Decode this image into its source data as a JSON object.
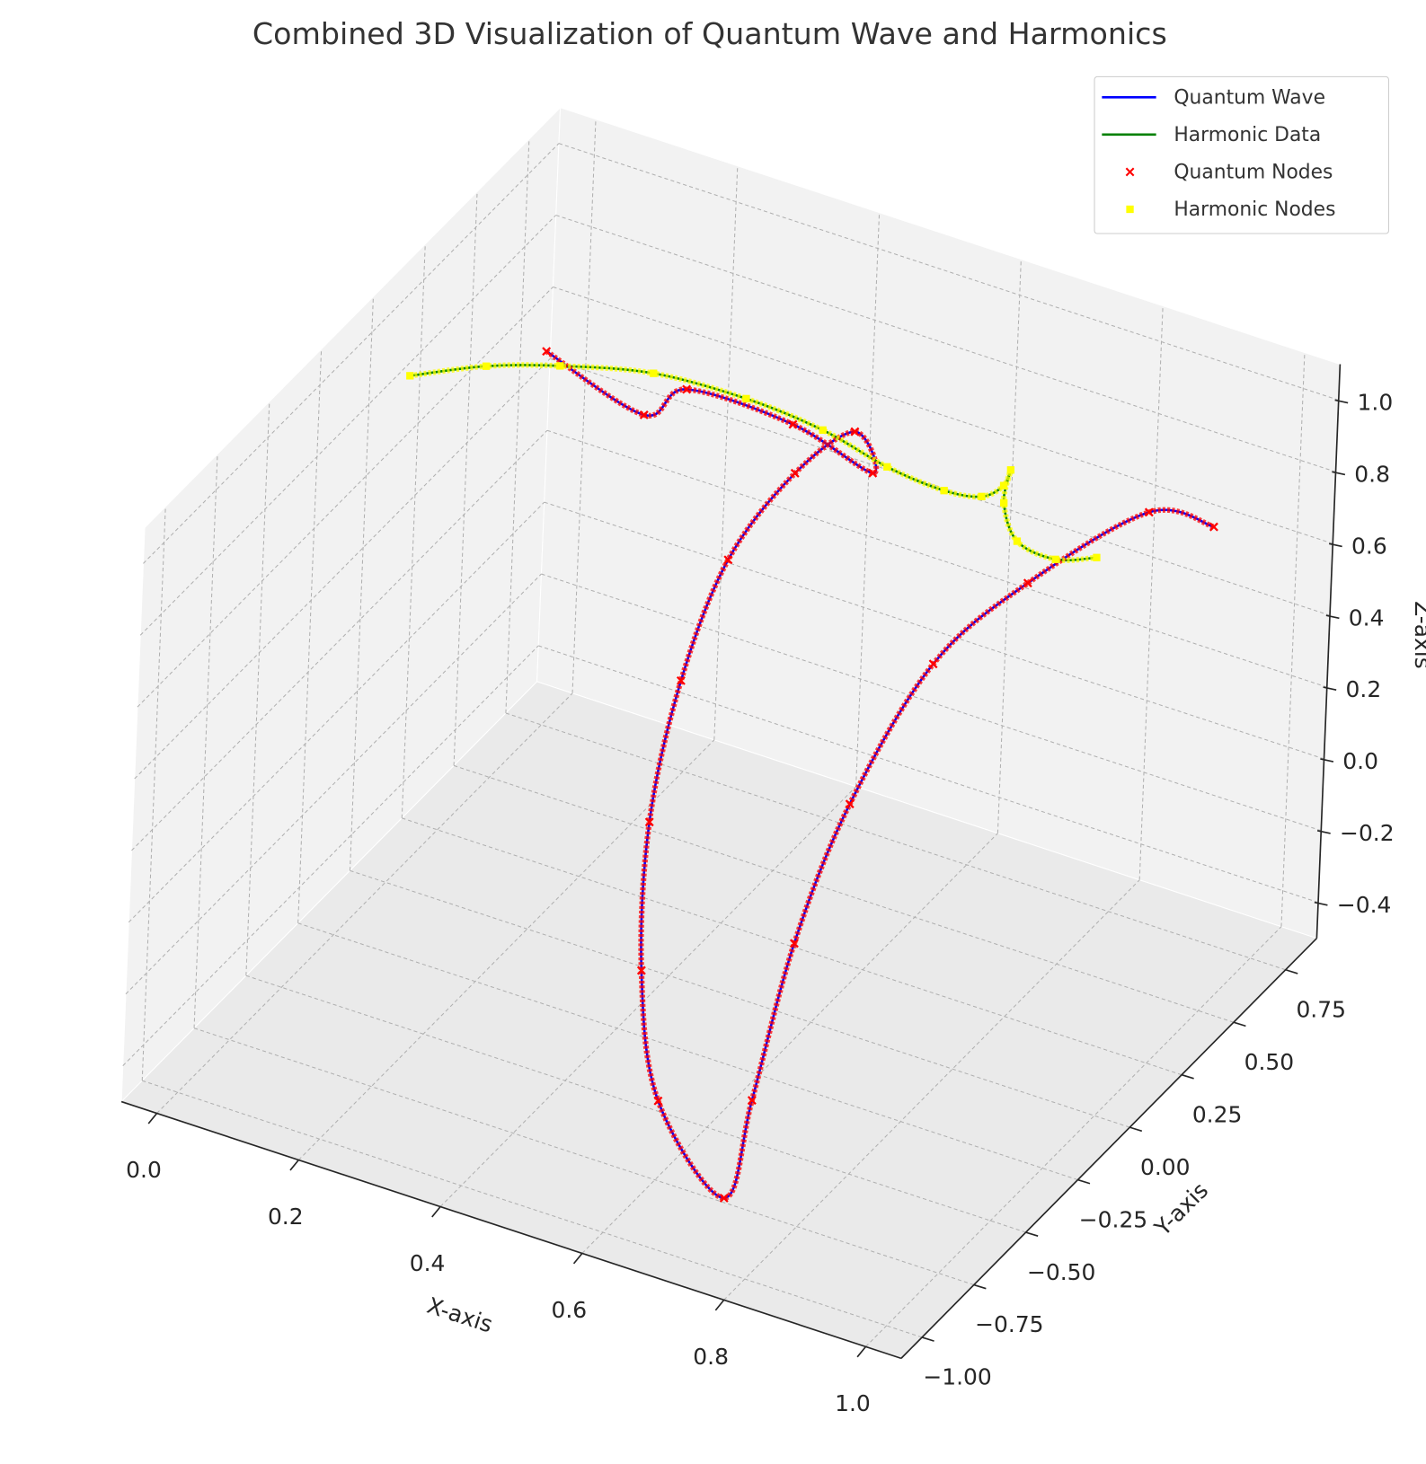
{
  "chart_data": {
    "type": "line3d",
    "title": "Combined 3D Visualization of Quantum Wave and Harmonics",
    "xlabel": "X-axis",
    "ylabel": "Y-axis",
    "zlabel": "Z-axis",
    "xlim": [
      -0.05,
      1.05
    ],
    "ylim": [
      -1.1,
      0.9
    ],
    "zlim": [
      -0.5,
      1.1
    ],
    "xticks": [
      {
        "value": 0,
        "label": "0.0"
      },
      0.2,
      0.4,
      0.6,
      0.8,
      {
        "value": 1,
        "label": "1.0"
      }
    ],
    "yticks": [
      {
        "value": -1,
        "label": "−1.00"
      },
      {
        "value": -0.75,
        "label": "−0.75"
      },
      {
        "value": -0.5,
        "label": "−0.50"
      },
      {
        "value": -0.25,
        "label": "−0.25"
      },
      {
        "value": 0,
        "label": "0.00"
      },
      {
        "value": 0.25,
        "label": "0.25"
      },
      {
        "value": 0.5,
        "label": "0.50"
      },
      {
        "value": 0.75,
        "label": "0.75"
      }
    ],
    "zticks": [
      {
        "value": -0.4,
        "label": "−0.4"
      },
      {
        "value": -0.2,
        "label": "−0.2"
      },
      {
        "value": 0,
        "label": "0.0"
      },
      0.2,
      0.4,
      0.6,
      0.8,
      {
        "value": 1,
        "label": "1.0"
      }
    ],
    "grid": true,
    "legend": "upper right",
    "series": [
      {
        "name": "Quantum Wave",
        "type": "line",
        "color": "blue",
        "x": [
          0,
          0.12,
          0.2,
          0.35,
          0.45,
          0.42,
          0.4,
          0.42,
          0.45,
          0.5,
          0.55,
          0.6,
          0.7,
          0.75,
          0.8,
          0.85,
          0.9,
          0.93,
          0.97,
          1.0
        ],
        "y": [
          0.7,
          0.77,
          0.69,
          0.69,
          0.74,
          0.75,
          0.53,
          0.14,
          -0.18,
          -0.49,
          -0.68,
          -0.75,
          -0.76,
          -0.82,
          -0.82,
          -0.75,
          -0.54,
          -0.19,
          0.26,
          0.48
        ],
        "z": [
          0.57,
          0.43,
          0.6,
          0.6,
          0.5,
          0.59,
          0.59,
          0.59,
          0.46,
          0.28,
          0.01,
          -0.28,
          -0.48,
          -0.14,
          0.33,
          0.71,
          1.01,
          1.05,
          1.01,
          0.86
        ]
      },
      {
        "name": "Harmonic Data",
        "type": "line",
        "color": "green",
        "x": [
          0,
          0.1,
          0.2,
          0.3,
          0.4,
          0.5,
          0.6,
          0.7,
          0.75,
          0.78,
          0.8,
          0.82,
          0.86,
          0.92,
          0.98
        ],
        "y": [
          0.02,
          0.04,
          0.05,
          0.16,
          0.27,
          0.3,
          0.27,
          0.2,
          0.21,
          0.21,
          0.17,
          0.07,
          0.0,
          -0.02,
          -0.03
        ],
        "z": [
          0.9,
          0.98,
          1.04,
          1.02,
          0.95,
          0.91,
          0.89,
          0.93,
          0.94,
          0.99,
          1.07,
          1.05,
          1.01,
          1.01,
          1.06
        ]
      },
      {
        "name": "Quantum Nodes",
        "type": "scatter",
        "color": "red",
        "x": [
          0,
          0.12,
          0.2,
          0.35,
          0.45,
          0.42,
          0.4,
          0.42,
          0.45,
          0.5,
          0.55,
          0.6,
          0.7,
          0.75,
          0.8,
          0.85,
          0.9,
          0.93,
          0.97,
          1.0
        ],
        "y": [
          0.7,
          0.77,
          0.69,
          0.69,
          0.74,
          0.75,
          0.53,
          0.14,
          -0.18,
          -0.49,
          -0.68,
          -0.75,
          -0.76,
          -0.82,
          -0.82,
          -0.75,
          -0.54,
          -0.19,
          0.26,
          0.48
        ],
        "z": [
          0.57,
          0.43,
          0.6,
          0.6,
          0.5,
          0.59,
          0.59,
          0.59,
          0.46,
          0.28,
          0.01,
          -0.28,
          -0.48,
          -0.14,
          0.33,
          0.71,
          1.01,
          1.05,
          1.01,
          0.86
        ]
      },
      {
        "name": "Harmonic Nodes",
        "type": "scatter",
        "color": "yellow",
        "x": [
          0,
          0.1,
          0.2,
          0.3,
          0.4,
          0.5,
          0.6,
          0.7,
          0.75,
          0.78,
          0.8,
          0.82,
          0.86,
          0.92,
          0.98
        ],
        "y": [
          0.02,
          0.04,
          0.05,
          0.16,
          0.27,
          0.3,
          0.27,
          0.2,
          0.21,
          0.21,
          0.17,
          0.07,
          0.0,
          -0.02,
          -0.03
        ],
        "z": [
          0.9,
          0.98,
          1.04,
          1.02,
          0.95,
          0.91,
          0.89,
          0.93,
          0.94,
          0.99,
          1.07,
          1.05,
          1.01,
          1.01,
          1.06
        ]
      }
    ]
  }
}
